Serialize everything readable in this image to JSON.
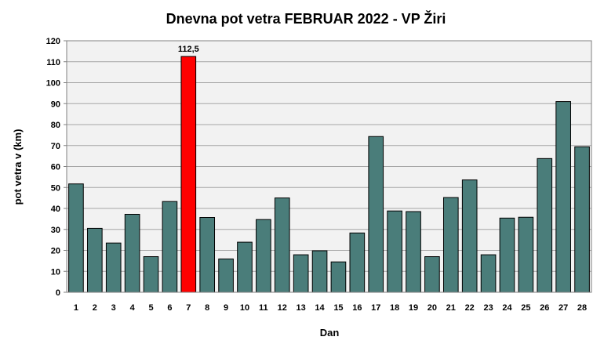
{
  "chart_data": {
    "type": "bar",
    "title": "Dnevna pot vetra FEBRUAR 2022 - VP Žiri",
    "xlabel": "Dan",
    "ylabel": "pot vetra  v (km)",
    "ylim": [
      0,
      120
    ],
    "y_ticks": [
      "0",
      "10",
      "20",
      "30",
      "40",
      "50",
      "60",
      "70",
      "80",
      "90",
      "100",
      "110",
      "120"
    ],
    "grid": true,
    "categories": [
      "1",
      "2",
      "3",
      "4",
      "5",
      "6",
      "7",
      "8",
      "9",
      "10",
      "11",
      "12",
      "13",
      "14",
      "15",
      "16",
      "17",
      "18",
      "19",
      "20",
      "21",
      "22",
      "23",
      "24",
      "25",
      "26",
      "27",
      "28"
    ],
    "values": [
      51.7,
      30.5,
      23.5,
      37.2,
      17.0,
      43.3,
      112.5,
      35.7,
      15.9,
      23.9,
      34.7,
      45.0,
      17.9,
      19.8,
      14.5,
      28.3,
      74.3,
      38.8,
      38.5,
      17.0,
      45.2,
      53.6,
      17.9,
      35.4,
      35.8,
      63.8,
      91.0,
      69.4
    ],
    "highlight": {
      "index": 6,
      "label": "112,5",
      "color": "#ff0000"
    },
    "bar_color": "#4a7d7a",
    "plot_background": "#f2f2f2"
  }
}
